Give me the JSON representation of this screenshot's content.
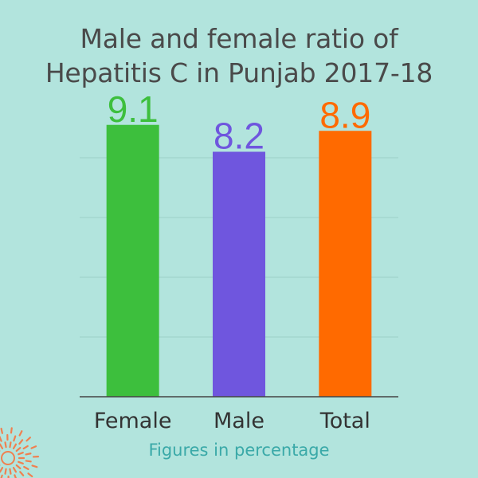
{
  "title_line1": "Male and female ratio of",
  "title_line2": "Hepatitis C in Punjab 2017-18",
  "footnote": "Figures in percentage",
  "colors": {
    "background": "#b2e4dd",
    "title": "#4a4a4a",
    "footnote": "#3aa9a8",
    "ornament": "#f08050"
  },
  "chart_data": {
    "type": "bar",
    "title": "Male and female ratio of Hepatitis C in Punjab 2017-18",
    "xlabel": "",
    "ylabel": "",
    "categories": [
      "Female",
      "Male",
      "Total"
    ],
    "values": [
      9.1,
      8.2,
      8.9
    ],
    "value_labels": [
      "9.1",
      "8.2",
      "8.9"
    ],
    "colors": [
      "#3dbf3d",
      "#6f56de",
      "#ff6a00"
    ],
    "ylim": [
      0,
      10
    ],
    "grid": true,
    "legend": "none"
  }
}
